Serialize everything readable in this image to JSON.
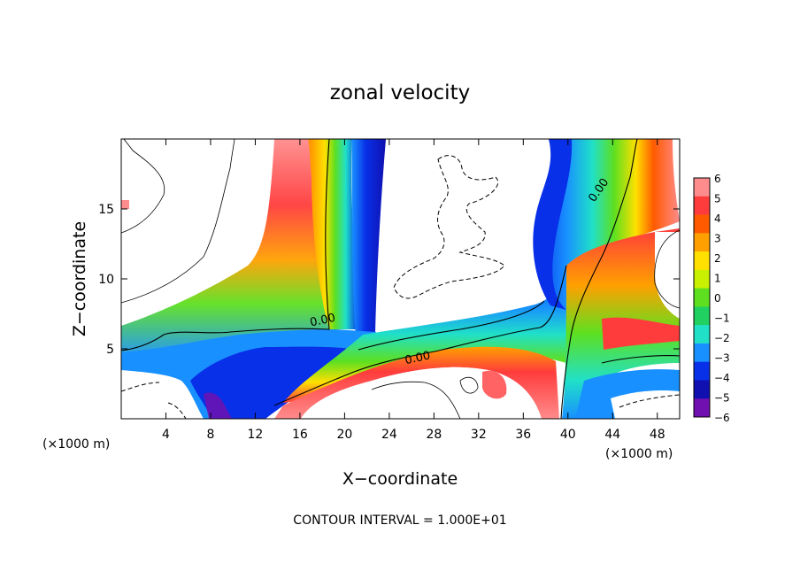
{
  "chart_data": {
    "type": "heatmap",
    "title": "zonal velocity",
    "xlabel": "X−coordinate",
    "ylabel": "Z−coordinate",
    "x_unit_label": "(×1000 m)",
    "z_unit_label": "(×1000 m)",
    "footer": "CONTOUR INTERVAL = 1.000E+01",
    "xlim": [
      0,
      50
    ],
    "ylim": [
      0,
      20
    ],
    "x_ticks": [
      4,
      8,
      12,
      16,
      20,
      24,
      28,
      32,
      36,
      40,
      44,
      48
    ],
    "y_ticks": [
      5,
      10,
      15
    ],
    "colorbar": {
      "levels": [
        6,
        5,
        4,
        3,
        2,
        1,
        0,
        -1,
        -2,
        -3,
        -4,
        -5,
        -6
      ],
      "colors": [
        "#ff8c8c",
        "#ff3c3c",
        "#ff5a00",
        "#ffa000",
        "#ffe000",
        "#c8f000",
        "#5ee020",
        "#20d060",
        "#20e0c8",
        "#1890ff",
        "#0830e8",
        "#1010b0",
        "#7010b0"
      ]
    },
    "contour_labels": [
      {
        "text": "0.00",
        "x": 18.1,
        "z": 6.8
      },
      {
        "text": "0.00",
        "x": 26.6,
        "z": 4.1
      },
      {
        "text": "0.00",
        "x": 43.0,
        "z": 16.2
      }
    ]
  }
}
